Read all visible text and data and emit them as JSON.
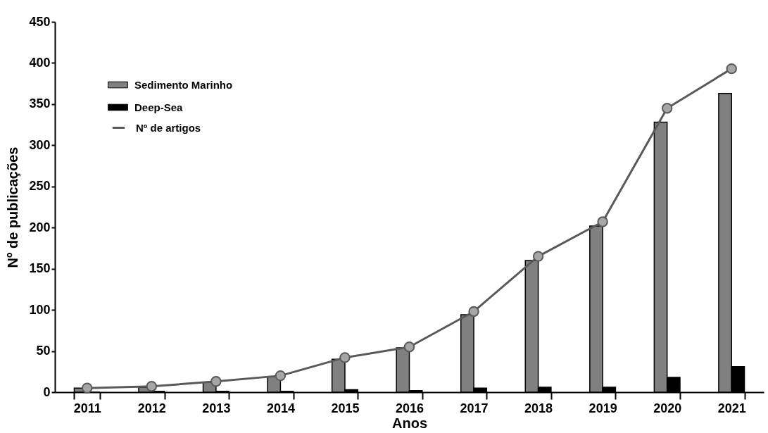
{
  "chart_data": {
    "type": "bar",
    "xlabel": "Anos",
    "ylabel": "Nº de publicações",
    "categories": [
      "2011",
      "2012",
      "2013",
      "2014",
      "2015",
      "2016",
      "2017",
      "2018",
      "2019",
      "2020",
      "2021"
    ],
    "series": [
      {
        "name": "Sedimento Marinho",
        "color": "#808080",
        "values": [
          5,
          6,
          12,
          19,
          40,
          54,
          94,
          160,
          202,
          328,
          363
        ]
      },
      {
        "name": "Deep-Sea",
        "color": "#000000",
        "values": [
          0,
          1,
          1,
          1,
          3,
          2,
          5,
          6,
          6,
          18,
          31
        ]
      },
      {
        "name": "Nº de artigos",
        "type": "line",
        "color": "#595959",
        "values": [
          5,
          7,
          13,
          20,
          42,
          55,
          98,
          165,
          207,
          345,
          393
        ]
      }
    ],
    "marker": "circle",
    "ylim": [
      0,
      450
    ],
    "yticks": [
      0,
      50,
      100,
      150,
      200,
      250,
      300,
      350,
      400,
      450
    ],
    "grid": false,
    "legend": "top left"
  }
}
